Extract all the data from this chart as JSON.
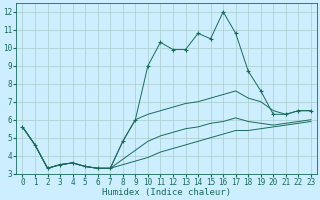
{
  "xlabel": "Humidex (Indice chaleur)",
  "bg_color": "#cceeff",
  "grid_color": "#aacccc",
  "line_color": "#1a6b5a",
  "xlim": [
    -0.5,
    23.5
  ],
  "ylim": [
    3,
    12.5
  ],
  "yticks": [
    3,
    4,
    5,
    6,
    7,
    8,
    9,
    10,
    11,
    12
  ],
  "xticks": [
    0,
    1,
    2,
    3,
    4,
    5,
    6,
    7,
    8,
    9,
    10,
    11,
    12,
    13,
    14,
    15,
    16,
    17,
    18,
    19,
    20,
    21,
    22,
    23
  ],
  "series": [
    {
      "x": [
        0,
        1,
        2,
        3,
        4,
        5,
        6,
        7,
        8,
        9,
        10,
        11,
        12,
        13,
        14,
        15,
        16,
        17,
        18,
        19,
        20,
        21,
        22,
        23
      ],
      "y": [
        5.6,
        4.6,
        3.3,
        3.5,
        3.6,
        3.4,
        3.3,
        3.3,
        4.8,
        6.0,
        9.0,
        10.3,
        9.9,
        9.9,
        10.8,
        10.5,
        12.0,
        10.8,
        8.7,
        7.6,
        6.3,
        6.3,
        6.5,
        6.5
      ],
      "marker": "+"
    },
    {
      "x": [
        0,
        1,
        2,
        3,
        4,
        5,
        6,
        7,
        8,
        9,
        10,
        11,
        12,
        13,
        14,
        15,
        16,
        17,
        18,
        19,
        20,
        21,
        22,
        23
      ],
      "y": [
        5.6,
        4.6,
        3.3,
        3.5,
        3.6,
        3.4,
        3.3,
        3.3,
        4.8,
        6.0,
        6.3,
        6.5,
        6.7,
        6.9,
        7.0,
        7.2,
        7.4,
        7.6,
        7.2,
        7.0,
        6.5,
        6.3,
        6.5,
        6.5
      ],
      "marker": null
    },
    {
      "x": [
        0,
        1,
        2,
        3,
        4,
        5,
        6,
        7,
        8,
        9,
        10,
        11,
        12,
        13,
        14,
        15,
        16,
        17,
        18,
        19,
        20,
        21,
        22,
        23
      ],
      "y": [
        5.6,
        4.6,
        3.3,
        3.5,
        3.6,
        3.4,
        3.3,
        3.3,
        3.8,
        4.3,
        4.8,
        5.1,
        5.3,
        5.5,
        5.6,
        5.8,
        5.9,
        6.1,
        5.9,
        5.8,
        5.7,
        5.8,
        5.9,
        6.0
      ],
      "marker": null
    },
    {
      "x": [
        0,
        1,
        2,
        3,
        4,
        5,
        6,
        7,
        8,
        9,
        10,
        11,
        12,
        13,
        14,
        15,
        16,
        17,
        18,
        19,
        20,
        21,
        22,
        23
      ],
      "y": [
        5.6,
        4.6,
        3.3,
        3.5,
        3.6,
        3.4,
        3.3,
        3.3,
        3.5,
        3.7,
        3.9,
        4.2,
        4.4,
        4.6,
        4.8,
        5.0,
        5.2,
        5.4,
        5.4,
        5.5,
        5.6,
        5.7,
        5.8,
        5.9
      ],
      "marker": null
    }
  ]
}
